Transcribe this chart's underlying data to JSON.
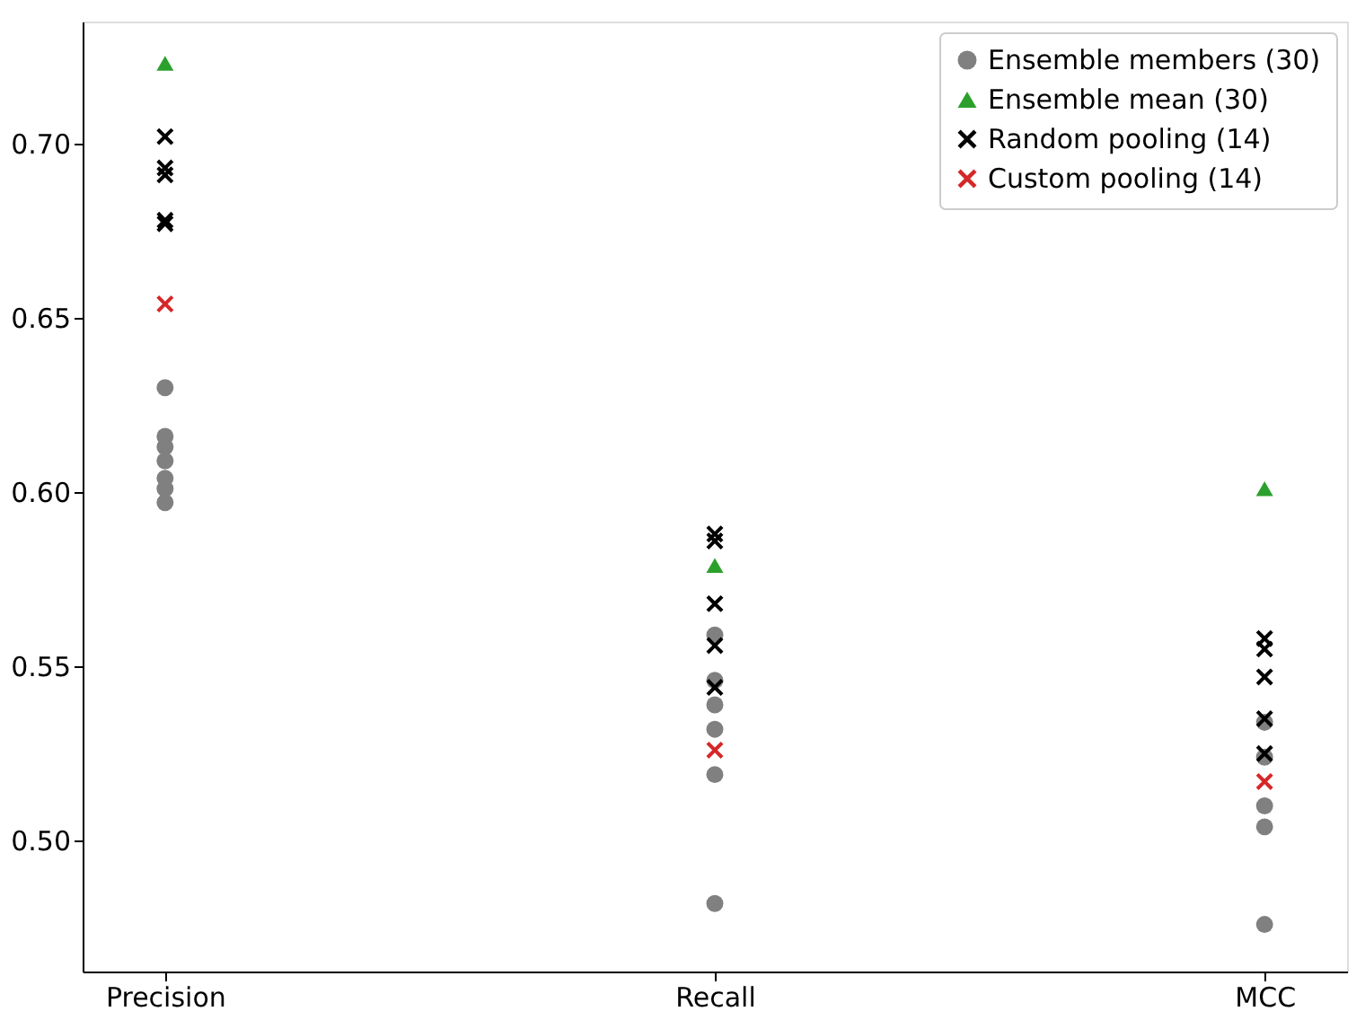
{
  "chart_data": {
    "type": "scatter",
    "categories": [
      "Precision",
      "Recall",
      "MCC"
    ],
    "ylim": [
      0.4625,
      0.735
    ],
    "yticks": [
      {
        "value": 0.5,
        "label": "0.50"
      },
      0.55,
      {
        "value": 0.6,
        "label": "0.60"
      },
      0.65,
      {
        "value": 0.7,
        "label": "0.70"
      }
    ],
    "grid": false,
    "legend": "top right",
    "series": [
      {
        "name": "Ensemble members (30)",
        "color": "#808080",
        "marker": "circle",
        "x": [
          "Precision",
          "Precision",
          "Precision",
          "Precision",
          "Precision",
          "Precision",
          "Precision",
          "Recall",
          "Recall",
          "Recall",
          "Recall",
          "Recall",
          "Recall",
          "MCC",
          "MCC",
          "MCC",
          "MCC",
          "MCC"
        ],
        "values": [
          0.63,
          0.616,
          0.613,
          0.609,
          0.604,
          0.601,
          0.597,
          0.559,
          0.546,
          0.539,
          0.532,
          0.519,
          0.482,
          0.534,
          0.524,
          0.51,
          0.504,
          0.476
        ]
      },
      {
        "name": "Ensemble mean (30)",
        "color": "#2ca02c",
        "marker": "triangle",
        "x": [
          "Precision",
          "Recall",
          "MCC"
        ],
        "values": [
          0.723,
          0.579,
          0.601
        ]
      },
      {
        "name": "Random pooling (14)",
        "color": "#000000",
        "marker": "cross",
        "x": [
          "Precision",
          "Precision",
          "Precision",
          "Precision",
          "Precision",
          "Recall",
          "Recall",
          "Recall",
          "Recall",
          "Recall",
          "MCC",
          "MCC",
          "MCC",
          "MCC",
          "MCC"
        ],
        "values": [
          0.702,
          0.693,
          0.691,
          0.678,
          0.677,
          0.588,
          0.586,
          0.568,
          0.556,
          0.544,
          0.558,
          0.555,
          0.547,
          0.535,
          0.525
        ]
      },
      {
        "name": "Custom pooling (14)",
        "color": "#d62728",
        "marker": "cross",
        "x": [
          "Precision",
          "Recall",
          "MCC"
        ],
        "values": [
          0.654,
          0.526,
          0.517
        ]
      }
    ]
  }
}
